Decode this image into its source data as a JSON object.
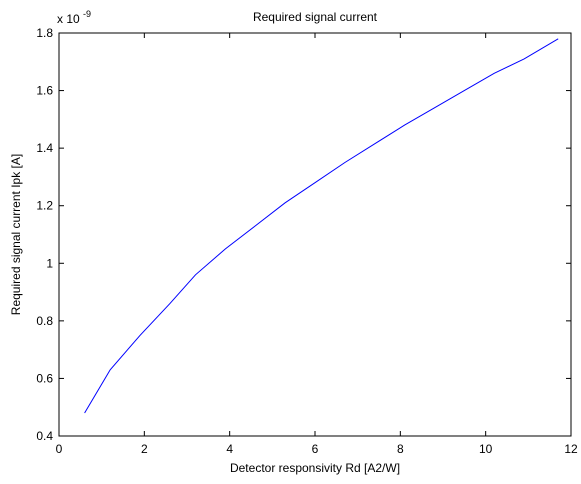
{
  "chart_data": {
    "type": "line",
    "title": "Required signal current",
    "xlabel": "Detector responsivity  Rd [A2/W]",
    "ylabel": "Required signal current  Ipk [A]",
    "y_exponent_label": "x 10",
    "y_exponent_power": "-9",
    "xlim": [
      0,
      12
    ],
    "ylim": [
      0.4,
      1.8
    ],
    "x_ticks": [
      0,
      2,
      4,
      6,
      8,
      10,
      12
    ],
    "y_ticks": [
      0.4,
      0.6,
      0.8,
      1.0,
      1.2,
      1.4,
      1.6,
      1.8
    ],
    "x_tick_labels": [
      "0",
      "2",
      "4",
      "6",
      "8",
      "10",
      "12"
    ],
    "y_tick_labels": [
      "0.4",
      "0.6",
      "0.8",
      "1",
      "1.2",
      "1.4",
      "1.6",
      "1.8"
    ],
    "grid": false,
    "series": [
      {
        "color": "#0000ff",
        "x": [
          0.6,
          1.2,
          1.9,
          2.6,
          3.2,
          3.9,
          4.6,
          5.3,
          6.0,
          6.7,
          7.4,
          8.1,
          8.8,
          9.5,
          10.2,
          10.9,
          11.7
        ],
        "y": [
          0.48,
          0.63,
          0.75,
          0.86,
          0.96,
          1.05,
          1.13,
          1.21,
          1.28,
          1.35,
          1.415,
          1.48,
          1.54,
          1.6,
          1.66,
          1.71,
          1.78
        ]
      }
    ]
  }
}
